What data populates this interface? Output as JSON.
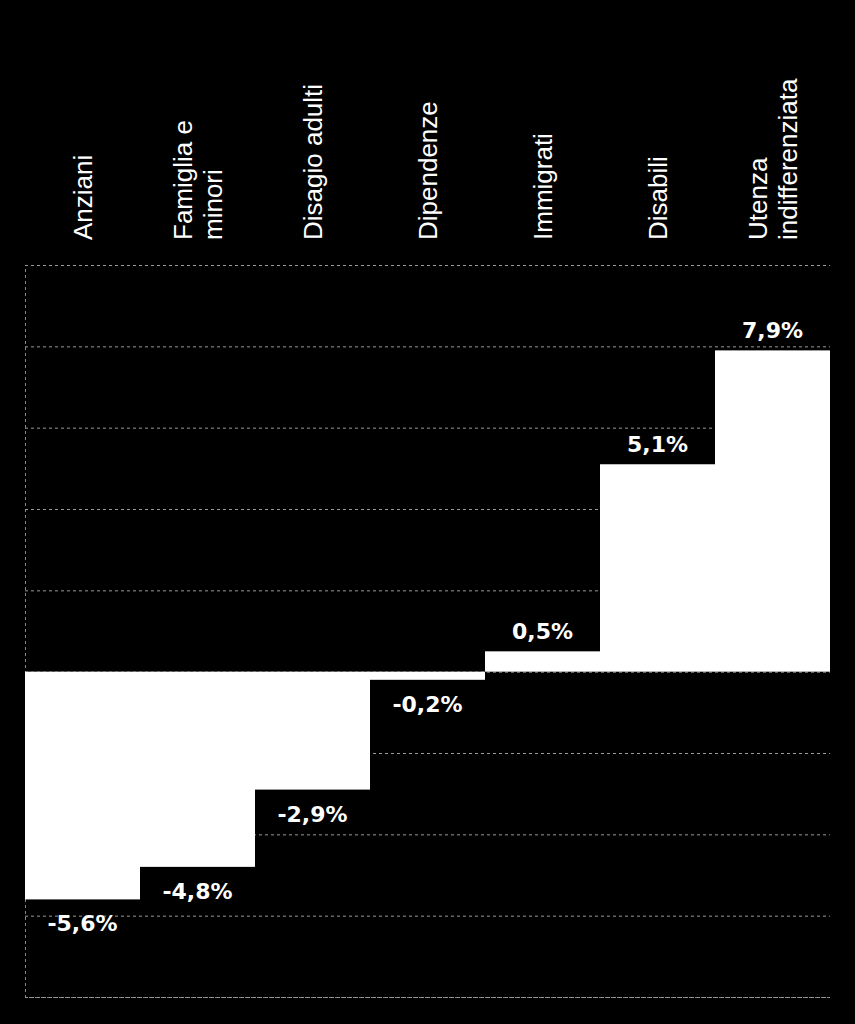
{
  "chart_data": {
    "type": "bar",
    "categories": [
      "Anziani",
      "Famiglia e minori",
      "Disagio adulti",
      "Dipendenze",
      "Immigrati",
      "Disabili",
      "Utenza indifferenziata"
    ],
    "values": [
      -5.6,
      -4.8,
      -2.9,
      -0.2,
      0.5,
      5.1,
      7.9
    ],
    "value_labels": [
      "-5,6%",
      "-4,8%",
      "-2,9%",
      "-0,2%",
      "0,5%",
      "5,1%",
      "7,9%"
    ],
    "color": "#ffffff",
    "ylim": [
      -8,
      10
    ],
    "yticks": [
      -8,
      -6,
      -4,
      -2,
      0,
      2,
      4,
      6,
      8,
      10
    ],
    "grid": true,
    "data_labels": true,
    "tick_labels": false
  }
}
